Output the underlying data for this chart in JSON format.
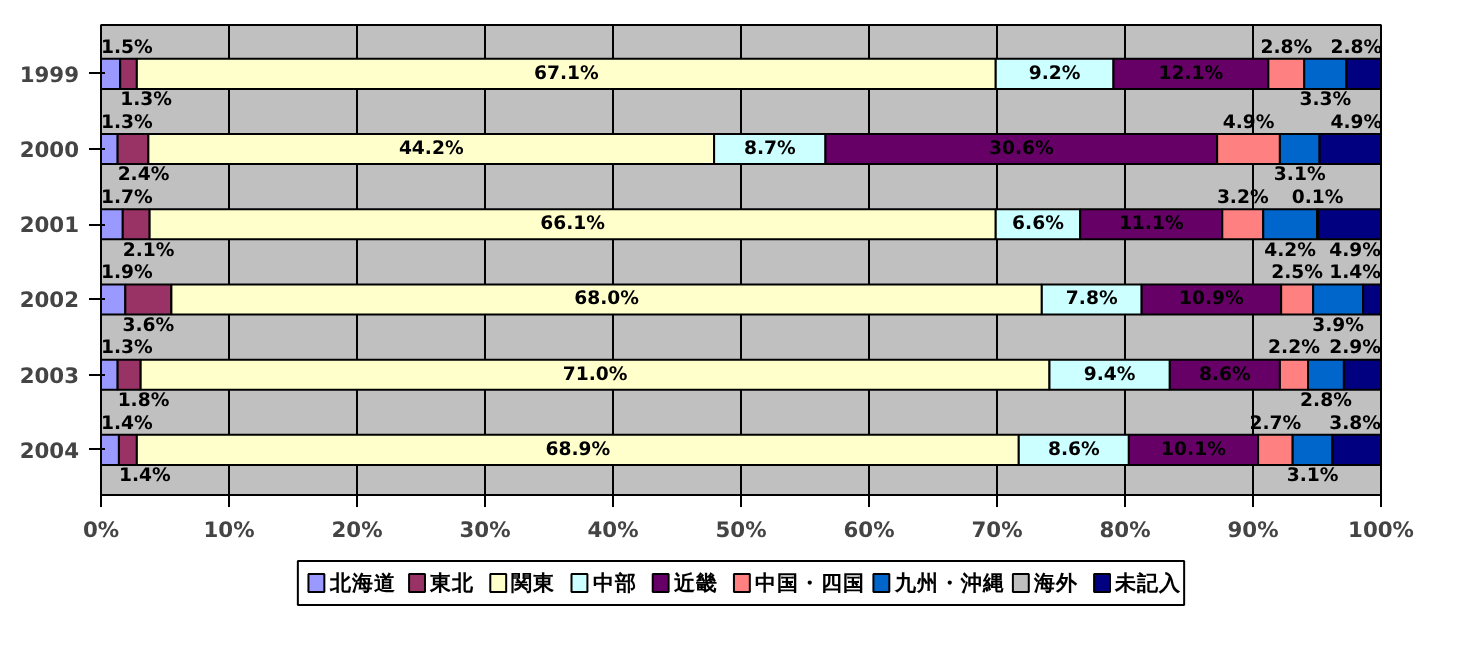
{
  "chart_data": {
    "type": "bar",
    "orientation": "horizontal",
    "stacked": true,
    "categories": [
      "1999",
      "2000",
      "2001",
      "2002",
      "2003",
      "2004"
    ],
    "series": [
      {
        "name": "北海道",
        "color": "#9999ff",
        "values": [
          1.5,
          1.3,
          1.7,
          1.9,
          1.3,
          1.4
        ],
        "value_labels": [
          "1.5%",
          "1.3%",
          "1.7%",
          "1.9%",
          "1.3%",
          "1.4%"
        ]
      },
      {
        "name": "東北",
        "color": "#993366",
        "values": [
          1.3,
          2.4,
          2.1,
          3.6,
          1.8,
          1.4
        ],
        "value_labels": [
          "1.3%",
          "2.4%",
          "2.1%",
          "3.6%",
          "1.8%",
          "1.4%"
        ]
      },
      {
        "name": "関東",
        "color": "#ffffcc",
        "values": [
          67.1,
          44.2,
          66.1,
          68.0,
          71.0,
          68.9
        ],
        "value_labels": [
          "67.1%",
          "44.2%",
          "66.1%",
          "68.0%",
          "71.0%",
          "68.9%"
        ]
      },
      {
        "name": "中部",
        "color": "#ccffff",
        "values": [
          9.2,
          8.7,
          6.6,
          7.8,
          9.4,
          8.6
        ],
        "value_labels": [
          "9.2%",
          "8.7%",
          "6.6%",
          "7.8%",
          "9.4%",
          "8.6%"
        ]
      },
      {
        "name": "近畿",
        "color": "#660066",
        "values": [
          12.1,
          30.6,
          11.1,
          10.9,
          8.6,
          10.1
        ],
        "value_labels": [
          "12.1%",
          "30.6%",
          "11.1%",
          "10.9%",
          "8.6%",
          "10.1%"
        ]
      },
      {
        "name": "中国・四国",
        "color": "#ff8080",
        "values": [
          2.8,
          4.9,
          3.2,
          2.5,
          2.2,
          2.7
        ],
        "value_labels": [
          "2.8%",
          "4.9%",
          "3.2%",
          "2.5%",
          "2.2%",
          "2.7%"
        ]
      },
      {
        "name": "九州・沖縄",
        "color": "#0066cc",
        "values": [
          3.3,
          3.1,
          4.2,
          3.9,
          2.8,
          3.1
        ],
        "value_labels": [
          "3.3%",
          "3.1%",
          "4.2%",
          "3.9%",
          "2.8%",
          "3.1%"
        ]
      },
      {
        "name": "海外",
        "color": "#c0c0c0",
        "values": [
          null,
          null,
          0.1,
          null,
          null,
          null
        ],
        "value_labels": [
          null,
          null,
          "0.1%",
          null,
          null,
          null
        ]
      },
      {
        "name": "未記入",
        "color": "#000080",
        "values": [
          2.8,
          4.9,
          4.9,
          1.4,
          2.9,
          3.8
        ],
        "value_labels": [
          "2.8%",
          "4.9%",
          "4.9%",
          "1.4%",
          "2.9%",
          "3.8%"
        ]
      }
    ],
    "xlim": [
      0,
      100
    ],
    "xticks": [
      {
        "value": 0,
        "label": "0%"
      },
      {
        "value": 10,
        "label": "10%"
      },
      {
        "value": 20,
        "label": "20%"
      },
      {
        "value": 30,
        "label": "30%"
      },
      {
        "value": 40,
        "label": "40%"
      },
      {
        "value": 50,
        "label": "50%"
      },
      {
        "value": 60,
        "label": "60%"
      },
      {
        "value": 70,
        "label": "70%"
      },
      {
        "value": 80,
        "label": "80%"
      },
      {
        "value": 90,
        "label": "90%"
      },
      {
        "value": 100,
        "label": "100%"
      }
    ],
    "grid": "x",
    "legend": "bottom"
  }
}
